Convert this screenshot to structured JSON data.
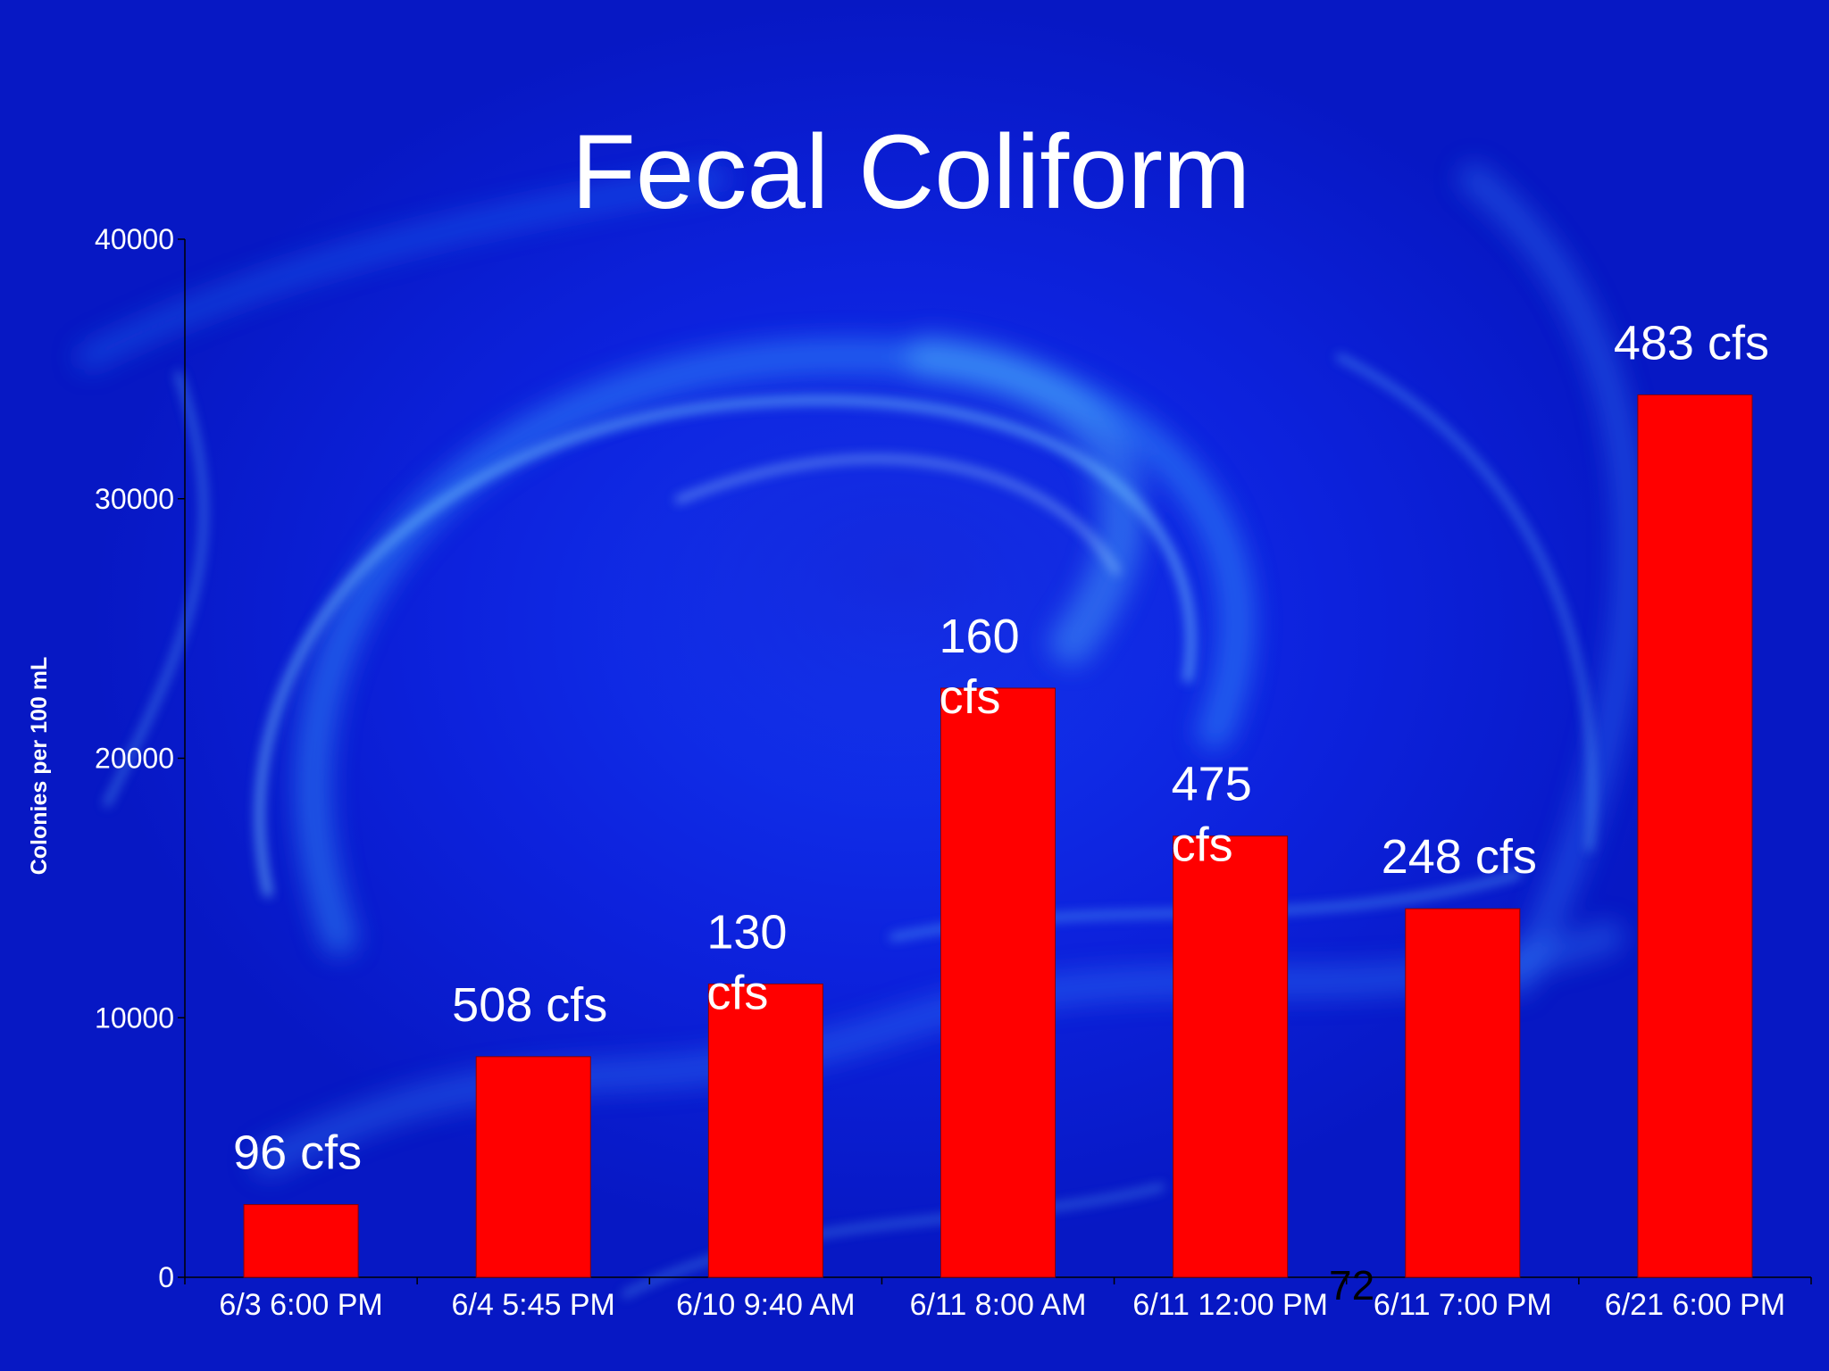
{
  "chart_data": {
    "type": "bar",
    "title": "Fecal Coliform",
    "xlabel": "",
    "ylabel": "Colonies per 100 mL",
    "ylim": [
      0,
      40000
    ],
    "yticks": [
      0,
      10000,
      20000,
      30000,
      40000
    ],
    "grid": false,
    "categories": [
      "6/3 6:00 PM",
      "6/4 5:45 PM",
      "6/10 9:40 AM",
      "6/11 8:00 AM",
      "6/11 12:00 PM",
      "6/11 7:00 PM",
      "6/21 6:00 PM"
    ],
    "values": [
      2800,
      8500,
      11300,
      22700,
      17000,
      14200,
      34000
    ],
    "bar_labels": [
      [
        "96 cfs"
      ],
      [
        "508 cfs"
      ],
      [
        "130",
        "cfs"
      ],
      [
        "160",
        "cfs"
      ],
      [
        "475",
        "cfs"
      ],
      [
        "248 cfs"
      ],
      [
        "483 cfs"
      ]
    ],
    "colors": {
      "bar": "#ff0000",
      "bar_edge": "#8b0000",
      "text": "#ffffff",
      "axis": "#000000"
    }
  },
  "slide": {
    "number": "72"
  }
}
